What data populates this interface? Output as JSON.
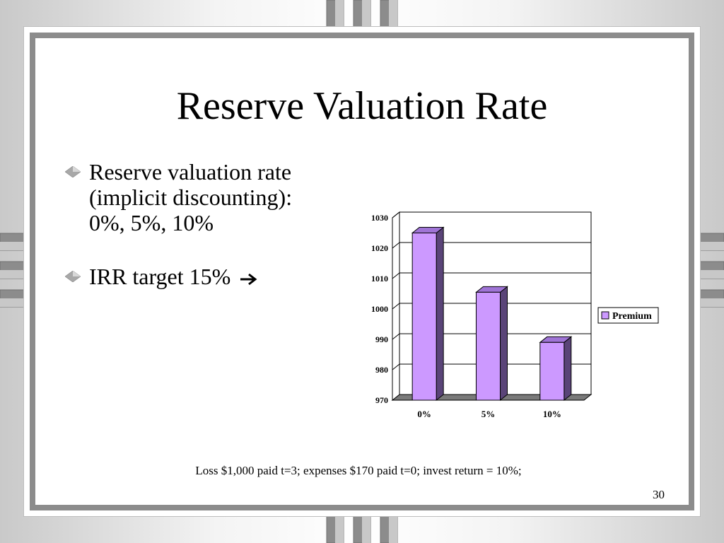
{
  "slide": {
    "title": "Reserve Valuation Rate",
    "bullets": [
      {
        "lines": [
          "Reserve valuation rate",
          "(implicit discounting):",
          "0%, 5%, 10%"
        ]
      },
      {
        "lines": [
          "IRR target 15%"
        ],
        "trailing_icon": "right-arrow-icon"
      }
    ],
    "footnote": "Loss $1,000 paid t=3; expenses $170 paid t=0;  invest return = 10%;",
    "page_number": "30"
  },
  "chart_data": {
    "type": "bar",
    "categories": [
      "0%",
      "5%",
      "10%"
    ],
    "series": [
      {
        "name": "Premium",
        "values": [
          1025,
          1005.5,
          989
        ]
      }
    ],
    "ylim": [
      970,
      1030
    ],
    "yticks": [
      970,
      980,
      990,
      1000,
      1010,
      1020,
      1030
    ],
    "grid": true,
    "legend_position": "right",
    "bar_color": "#cc99ff",
    "bar_side_color": "#5a4478",
    "bar_top_color": "#9f74d6"
  },
  "colors": {
    "frame": "#8c8c8c",
    "accent_tab": "#9c9c9c"
  }
}
